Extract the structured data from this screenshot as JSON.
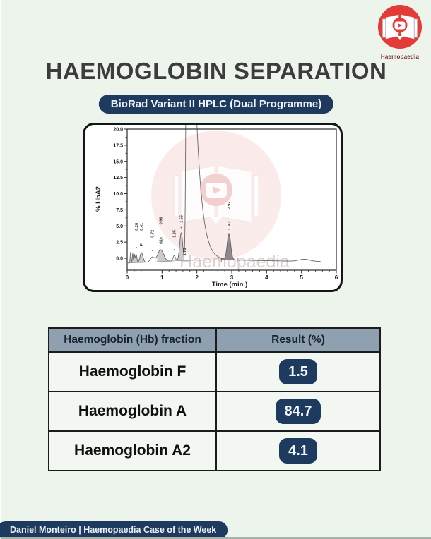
{
  "title": "HAEMOGLOBIN SEPARATION",
  "badge": "BioRad Variant II HPLC (Dual Programme)",
  "logo": {
    "caption": "Haemopaedia"
  },
  "colors": {
    "navy": "#1e3a5e",
    "logo_red": "#e23b38",
    "header_bg": "#8fa0b0",
    "row_bg": "#f2f8f1",
    "page_bg": "#ecf4ec"
  },
  "chart_data": {
    "type": "line",
    "title": "",
    "xlabel": "Time (min.)",
    "ylabel": "% HbA2",
    "xlim": [
      0,
      6
    ],
    "ylim": [
      0,
      20
    ],
    "x_tick_labels": [
      "0",
      "1",
      "2",
      "3",
      "4",
      "5",
      "6"
    ],
    "y_tick_labels": [
      "0.0",
      "2.5",
      "5.0",
      "7.5",
      "10.0",
      "12.5",
      "15.0",
      "17.5",
      "20.0"
    ],
    "watermark_text": "Haemopaedia",
    "peaks": [
      {
        "label": "",
        "rt": 0.1,
        "height": 1.6,
        "sigma": 0.013,
        "annotate": false
      },
      {
        "label": "",
        "rt": 0.16,
        "height": 1.45,
        "sigma": 0.013,
        "annotate": false
      },
      {
        "label": "",
        "rt": 0.21,
        "height": 1.2,
        "sigma": 0.013,
        "annotate": false
      },
      {
        "label": "0.26",
        "rt": 0.26,
        "height": 1.25,
        "sigma": 0.02,
        "annotate": true,
        "label_v": 4.3
      },
      {
        "name": "F",
        "label": "0.41",
        "rt": 0.41,
        "height": 1.55,
        "sigma": 0.042,
        "annotate": true,
        "name_v": 1.9,
        "label_v": 4.3
      },
      {
        "label": "0.72",
        "rt": 0.72,
        "height": 0.75,
        "sigma": 0.055,
        "annotate": true,
        "label_v": 3.2
      },
      {
        "name": "A1c",
        "label": "0.96",
        "rt": 0.96,
        "height": 1.85,
        "sigma": 0.085,
        "annotate": true,
        "name_v": 2.2,
        "label_v": 5.2
      },
      {
        "label": "1.35",
        "rt": 1.35,
        "height": 0.85,
        "sigma": 0.032,
        "annotate": true,
        "label_v": 3.2
      },
      {
        "label": "1.55",
        "rt": 1.55,
        "height": 4.3,
        "sigma": 0.042,
        "annotate": true,
        "label_v": 5.5
      },
      {
        "label": "1.73",
        "rt": 1.73,
        "height": 85,
        "sigma": 0.03,
        "tail": 0.2,
        "offscale": true,
        "annotate": true,
        "label_v": 0.4
      },
      {
        "name": "A2",
        "label": "2.92",
        "rt": 2.92,
        "height": 4.05,
        "sigma": 0.05,
        "annotate": true,
        "name_v": 5.0,
        "label_v": 7.6
      },
      {
        "label": "",
        "rt": 5.08,
        "height": 0.33,
        "sigma": 0.15,
        "annotate": false
      }
    ],
    "baseline": [
      [
        0,
        -0.75
      ],
      [
        0.9,
        -0.55
      ],
      [
        1.6,
        -0.35
      ],
      [
        2.2,
        -0.3
      ],
      [
        3.0,
        -0.28
      ],
      [
        4.0,
        -0.38
      ],
      [
        5.0,
        -0.48
      ],
      [
        5.55,
        -0.5
      ]
    ],
    "baseline_visible_to": 3.3,
    "fills": [
      {
        "from": 0.04,
        "to": 0.6,
        "color": "#cbcbcb"
      },
      {
        "from": 0.86,
        "to": 1.16,
        "color": "#cbcbcb"
      },
      {
        "from": 1.44,
        "to": 1.64,
        "color": "#cbcbcb"
      },
      {
        "from": 2.7,
        "to": 3.16,
        "color": "#8d8791"
      }
    ],
    "integration_marks": [
      2.7,
      3.16
    ],
    "trace_end": 5.55
  },
  "table": {
    "headers": [
      "Haemoglobin (Hb) fraction",
      "Result (%)"
    ],
    "rows": [
      {
        "fraction": "Haemoglobin F",
        "result": "1.5"
      },
      {
        "fraction": "Haemoglobin A",
        "result": "84.7"
      },
      {
        "fraction": "Haemoglobin A2",
        "result": "4.1"
      }
    ]
  },
  "footer": "Daniel Monteiro | Haemopaedia Case of the Week"
}
